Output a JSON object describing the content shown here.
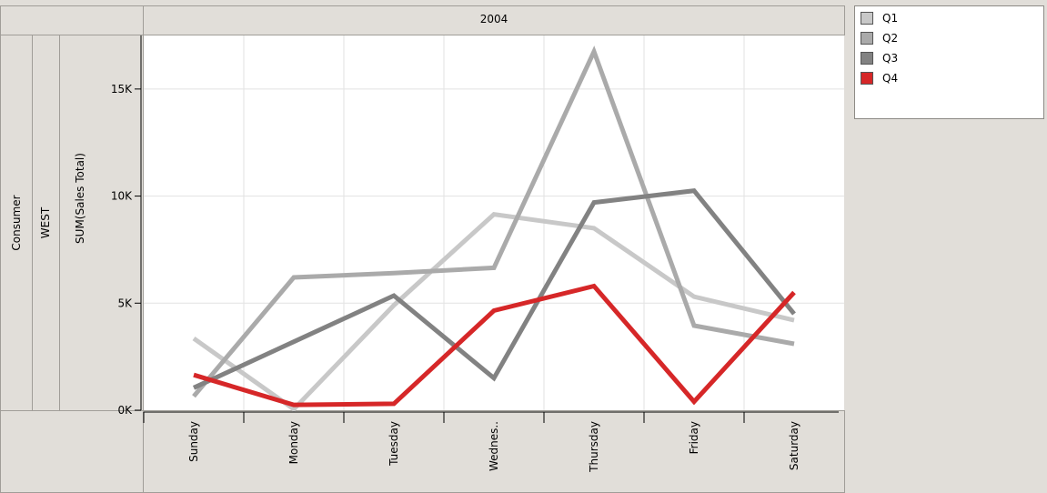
{
  "header": {
    "column_header": "2004"
  },
  "row_headers": {
    "segment": "Consumer",
    "region": "WEST"
  },
  "chart_data": {
    "type": "line",
    "ylabel": "SUM(Sales Total)",
    "categories": [
      "Sunday",
      "Monday",
      "Tuesday",
      "Wednes..",
      "Thursday",
      "Friday",
      "Saturday"
    ],
    "ylim": [
      0,
      17500
    ],
    "yticks": [
      0,
      5000,
      10000,
      15000
    ],
    "ytick_labels": [
      "0K",
      "5K",
      "10K",
      "15K"
    ],
    "grid": true,
    "legend_position": "top-right",
    "series": [
      {
        "name": "Q1",
        "color": "#c8c8c8",
        "values": [
          3350,
          50,
          4900,
          9150,
          8500,
          5300,
          4200
        ]
      },
      {
        "name": "Q2",
        "color": "#aaaaaa",
        "values": [
          650,
          6200,
          6400,
          6650,
          16750,
          3950,
          3100
        ]
      },
      {
        "name": "Q3",
        "color": "#828282",
        "values": [
          1050,
          3200,
          5350,
          1500,
          9700,
          10250,
          4500
        ]
      },
      {
        "name": "Q4",
        "color": "#d62728",
        "values": [
          1650,
          250,
          300,
          4650,
          5800,
          400,
          5500
        ]
      }
    ]
  }
}
